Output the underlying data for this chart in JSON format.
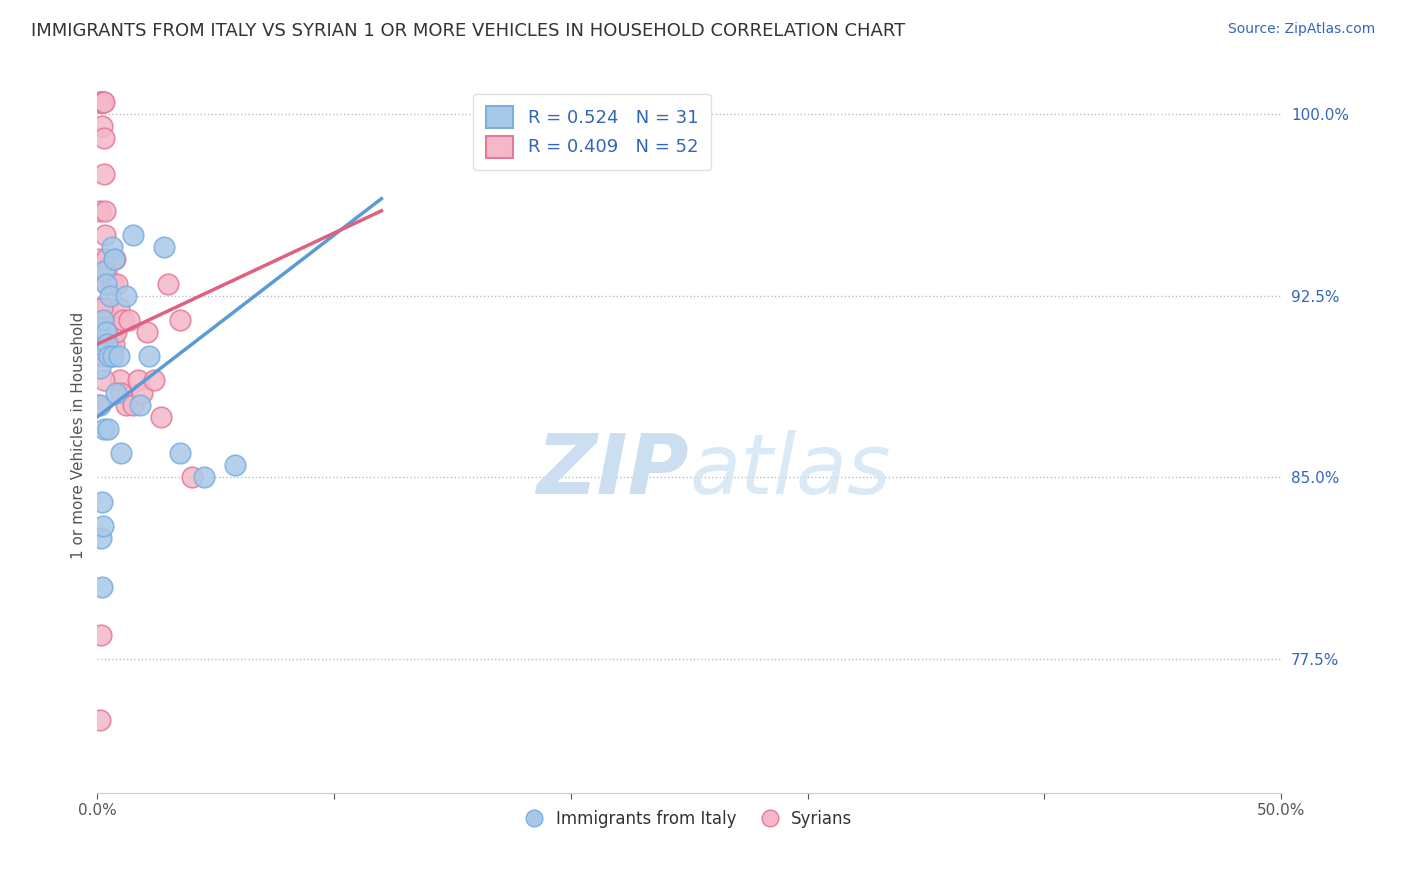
{
  "title": "IMMIGRANTS FROM ITALY VS SYRIAN 1 OR MORE VEHICLES IN HOUSEHOLD CORRELATION CHART",
  "source_text": "Source: ZipAtlas.com",
  "ylabel": "1 or more Vehicles in Household",
  "xlim": [
    0.0,
    50.0
  ],
  "ylim": [
    72.0,
    101.5
  ],
  "yticks": [
    77.5,
    85.0,
    92.5,
    100.0
  ],
  "ytick_labels": [
    "77.5%",
    "85.0%",
    "92.5%",
    "100.0%"
  ],
  "italy_color": "#a8c8e8",
  "italy_edge_color": "#7aafe0",
  "syrian_color": "#f4b8c8",
  "syrian_edge_color": "#e87898",
  "italy_R": 0.524,
  "italy_N": 31,
  "syrian_R": 0.409,
  "syrian_N": 52,
  "line_italy_color": "#5b9bd5",
  "line_syrian_color": "#e06080",
  "watermark_color": "#ccdff0",
  "italy_x": [
    0.05,
    0.08,
    0.1,
    0.12,
    0.15,
    0.18,
    0.2,
    0.22,
    0.25,
    0.28,
    0.3,
    0.35,
    0.38,
    0.4,
    0.45,
    0.5,
    0.55,
    0.6,
    0.65,
    0.7,
    0.8,
    0.9,
    1.0,
    1.2,
    1.5,
    1.8,
    2.2,
    2.8,
    3.5,
    4.5,
    5.8
  ],
  "italy_y": [
    90.5,
    91.0,
    89.5,
    88.0,
    82.5,
    84.0,
    80.5,
    83.0,
    91.5,
    93.5,
    87.0,
    93.0,
    91.0,
    90.5,
    87.0,
    90.0,
    92.5,
    94.5,
    90.0,
    94.0,
    88.5,
    90.0,
    86.0,
    92.5,
    95.0,
    88.0,
    90.0,
    94.5,
    86.0,
    85.0,
    85.5
  ],
  "syrian_x": [
    0.02,
    0.04,
    0.06,
    0.08,
    0.1,
    0.12,
    0.14,
    0.16,
    0.18,
    0.2,
    0.22,
    0.24,
    0.26,
    0.28,
    0.3,
    0.32,
    0.34,
    0.36,
    0.38,
    0.4,
    0.42,
    0.45,
    0.48,
    0.52,
    0.56,
    0.6,
    0.65,
    0.7,
    0.75,
    0.8,
    0.85,
    0.9,
    0.95,
    1.0,
    1.1,
    1.2,
    1.35,
    1.5,
    1.7,
    1.9,
    2.1,
    2.4,
    2.7,
    3.0,
    3.5,
    4.0,
    0.1,
    0.15,
    0.2,
    0.25,
    0.3,
    0.35
  ],
  "syrian_y": [
    90.0,
    88.0,
    92.0,
    94.0,
    96.0,
    100.5,
    100.5,
    100.5,
    100.5,
    99.5,
    100.5,
    100.5,
    100.5,
    99.0,
    97.5,
    96.0,
    95.0,
    94.0,
    93.5,
    93.0,
    92.0,
    91.5,
    91.0,
    90.5,
    91.0,
    90.0,
    93.0,
    90.5,
    94.0,
    91.0,
    93.0,
    92.0,
    89.0,
    88.5,
    91.5,
    88.0,
    91.5,
    88.0,
    89.0,
    88.5,
    91.0,
    89.0,
    87.5,
    93.0,
    91.5,
    85.0,
    75.0,
    78.5,
    92.0,
    90.0,
    89.0,
    91.0
  ],
  "line_italy_x0": 0.0,
  "line_italy_y0": 87.5,
  "line_italy_x1": 12.0,
  "line_italy_y1": 96.5,
  "line_syrian_x0": 0.0,
  "line_syrian_y0": 90.5,
  "line_syrian_x1": 12.0,
  "line_syrian_y1": 96.0
}
